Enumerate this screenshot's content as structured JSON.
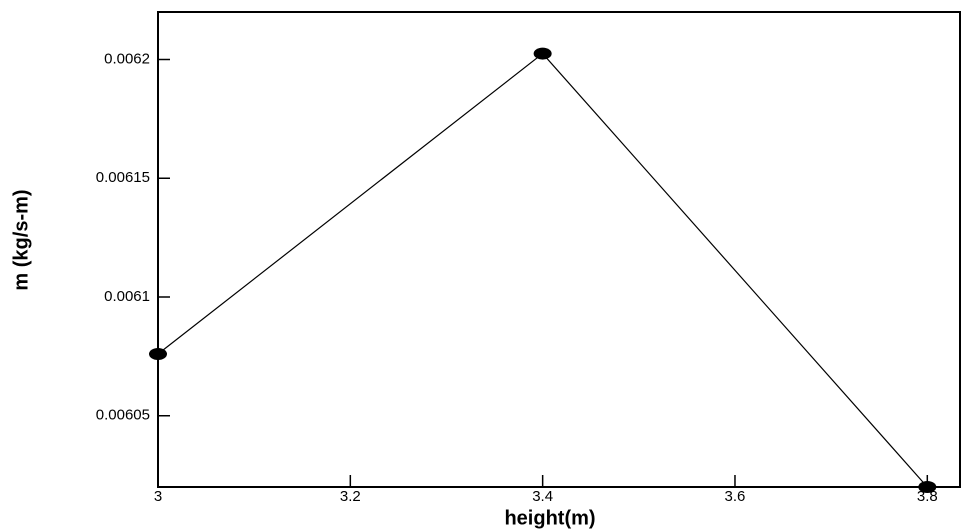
{
  "chart_data": {
    "type": "line",
    "x_label": "height(m)",
    "y_label": "m (kg/s-m)",
    "x": [
      3,
      3.4,
      3.8
    ],
    "series": [
      {
        "color": "#000000",
        "values": [
          0.006076,
          0.0062025,
          0.00602
        ]
      }
    ],
    "xlim": [
      3,
      3.834
    ],
    "xticks": [
      3,
      3.2,
      3.4,
      3.6,
      3.8
    ],
    "ylim": [
      0.00602,
      0.00622
    ],
    "yticks": [
      0.00605,
      0.0061,
      0.00615,
      0.0062
    ],
    "markers": true
  }
}
